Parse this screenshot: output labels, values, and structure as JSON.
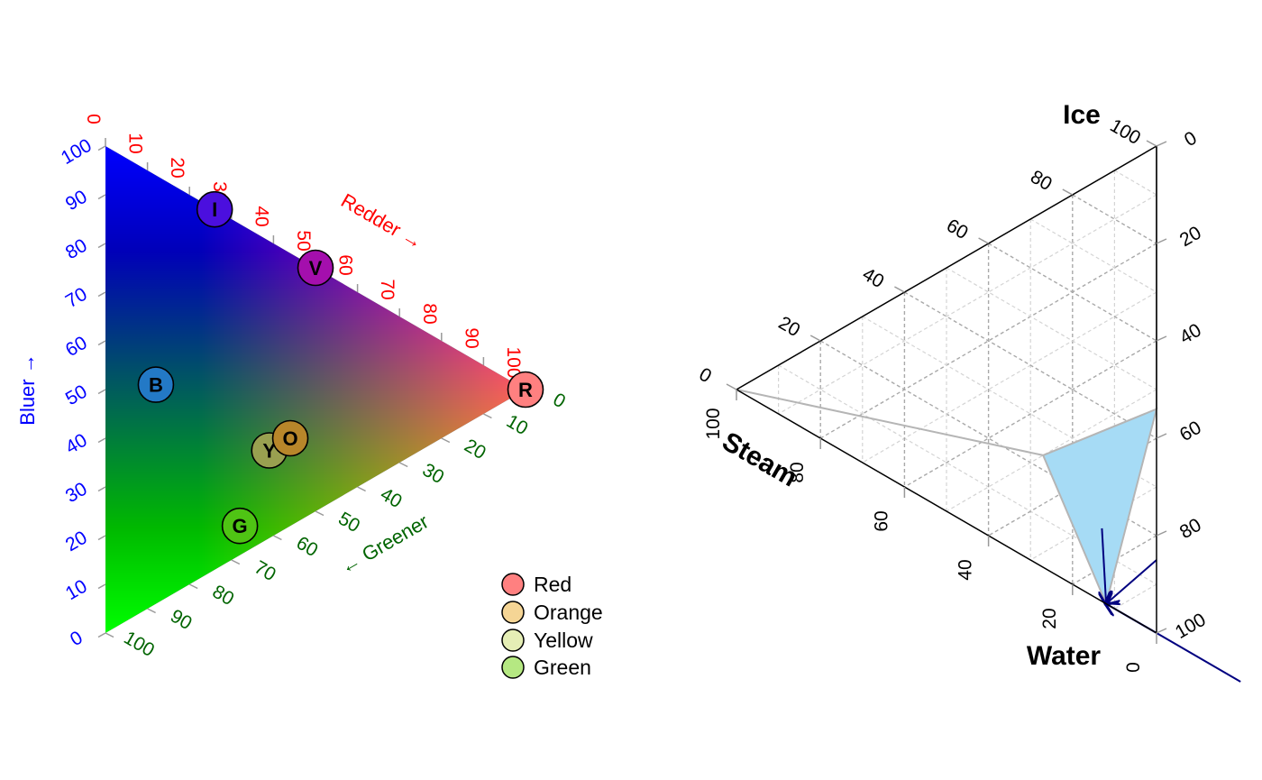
{
  "chart_data": [
    {
      "type": "scatter",
      "subtype": "ternary",
      "axes": {
        "left": {
          "label": "Bluer →",
          "color": "#0000ff",
          "ticks": [
            0,
            10,
            20,
            30,
            40,
            50,
            60,
            70,
            80,
            90,
            100
          ]
        },
        "top": {
          "label": "Redder →",
          "color": "#ff0000",
          "ticks": [
            0,
            10,
            20,
            30,
            40,
            50,
            60,
            70,
            80,
            90,
            100
          ]
        },
        "bottom": {
          "label": "← Greener",
          "color": "#006400",
          "ticks": [
            10,
            20,
            30,
            40,
            50,
            60,
            70,
            80,
            90,
            100
          ],
          "end_tick": "0"
        }
      },
      "corner_colors": {
        "top": "#0000ff",
        "right": "#ff0000",
        "bottom": "#00ff00"
      },
      "points": [
        {
          "label": "R",
          "red": 100,
          "green": 0,
          "blue": 0,
          "fill": "#ff8080"
        },
        {
          "label": "I",
          "red": 26,
          "green": 0,
          "blue": 74,
          "fill": "#4b0fde"
        },
        {
          "label": "V",
          "red": 50,
          "green": 0,
          "blue": 50,
          "fill": "#a40fad"
        },
        {
          "label": "B",
          "red": 12,
          "green": 43,
          "blue": 45,
          "fill": "#2379c6"
        },
        {
          "label": "Y",
          "red": 39,
          "green": 43,
          "blue": 18,
          "fill": "#99a050"
        },
        {
          "label": "O",
          "red": 44,
          "green": 38,
          "blue": 18,
          "fill": "#b8862a"
        },
        {
          "label": "G",
          "red": 32,
          "green": 62,
          "blue": 6,
          "fill": "#4fc414"
        }
      ],
      "legend": {
        "placement": "bottom-right",
        "entries": [
          {
            "label": "Red",
            "fill": "#ff8080"
          },
          {
            "label": "Orange",
            "fill": "#f5d595"
          },
          {
            "label": "Yellow",
            "fill": "#e5eeb5"
          },
          {
            "label": "Green",
            "fill": "#b5e882"
          }
        ]
      }
    },
    {
      "type": "area",
      "subtype": "ternary",
      "grid": true,
      "corner_labels": {
        "top": "Ice",
        "left": "Steam",
        "bottom": "Water"
      },
      "axes": {
        "left_edge": {
          "ticks": [
            "0",
            "20",
            "40",
            "60",
            "80",
            "100"
          ]
        },
        "right_edge": {
          "ticks": [
            "0",
            "20",
            "40",
            "60",
            "80",
            "100"
          ]
        },
        "bottom_edge": {
          "ticks": [
            "0",
            "20",
            "40",
            "60",
            "80",
            "100"
          ]
        }
      },
      "region": {
        "fill": "#a6dbf5",
        "vertices": [
          {
            "ice": 46,
            "steam": 0,
            "water": 54
          },
          {
            "ice": 23,
            "steam": 27,
            "water": 50
          },
          {
            "ice": 0,
            "steam": 12,
            "water": 88
          }
        ]
      },
      "guide_lines": [
        {
          "from": {
            "ice": 100,
            "steam": 0,
            "water": 0
          },
          "to": {
            "ice": 46,
            "steam": 0,
            "water": 54
          }
        },
        {
          "from": {
            "ice": 0,
            "steam": 100,
            "water": 0
          },
          "to": {
            "ice": 23,
            "steam": 27,
            "water": 50
          }
        },
        {
          "from": {
            "ice": 0,
            "steam": 0,
            "water": 100
          },
          "to": {
            "ice": 0,
            "steam": 12,
            "water": 88
          }
        }
      ],
      "arrows": [
        {
          "color": "#000080",
          "from": {
            "ice": 15,
            "steam": 0,
            "water": 85
          },
          "to": {
            "ice": 0,
            "steam": 12,
            "water": 88
          }
        },
        {
          "color": "#000080",
          "from": {
            "ice": 15,
            "steam": 13,
            "water": 72
          },
          "to": {
            "ice": 0,
            "steam": 12,
            "water": 88
          }
        },
        {
          "color": "#000080",
          "from": {
            "ice": 0,
            "steam": -20,
            "water": 120
          },
          "to": {
            "ice": 0,
            "steam": 12,
            "water": 88
          }
        }
      ]
    }
  ]
}
